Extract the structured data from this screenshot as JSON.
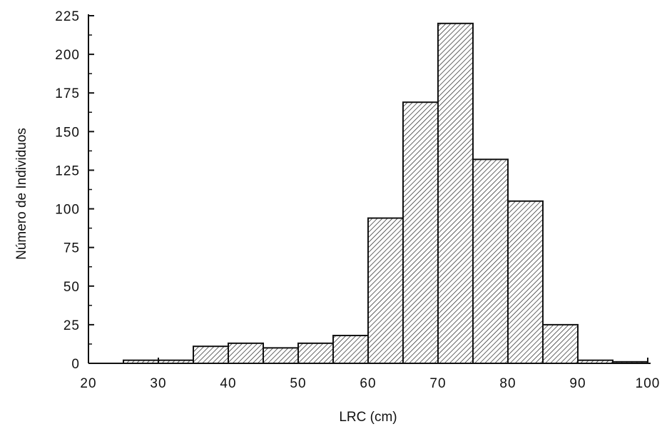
{
  "chart_data": {
    "type": "bar",
    "title": "",
    "xlabel": "LRC (cm)",
    "ylabel": "Número de Individuos",
    "xlim": [
      20,
      100
    ],
    "ylim": [
      0,
      225
    ],
    "bin_width": 5,
    "bins": [
      {
        "start": 25,
        "end": 30,
        "value": 2
      },
      {
        "start": 30,
        "end": 35,
        "value": 2
      },
      {
        "start": 35,
        "end": 40,
        "value": 11
      },
      {
        "start": 40,
        "end": 45,
        "value": 13
      },
      {
        "start": 45,
        "end": 50,
        "value": 10
      },
      {
        "start": 50,
        "end": 55,
        "value": 13
      },
      {
        "start": 55,
        "end": 60,
        "value": 18
      },
      {
        "start": 60,
        "end": 65,
        "value": 94
      },
      {
        "start": 65,
        "end": 70,
        "value": 169
      },
      {
        "start": 70,
        "end": 75,
        "value": 220
      },
      {
        "start": 75,
        "end": 80,
        "value": 132
      },
      {
        "start": 80,
        "end": 85,
        "value": 105
      },
      {
        "start": 85,
        "end": 90,
        "value": 25
      },
      {
        "start": 90,
        "end": 95,
        "value": 2
      },
      {
        "start": 95,
        "end": 100,
        "value": 1
      }
    ],
    "x_ticks": [
      20,
      30,
      40,
      50,
      60,
      70,
      80,
      90,
      100
    ],
    "y_ticks": [
      0,
      25,
      50,
      75,
      100,
      125,
      150,
      175,
      200,
      225
    ],
    "fill_pattern": "diagonal-hatch",
    "grid": false,
    "legend": "none"
  }
}
